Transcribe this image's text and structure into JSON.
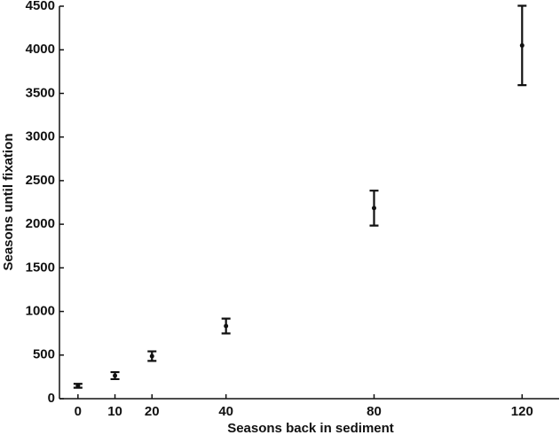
{
  "chart_data": {
    "type": "scatter",
    "x_label": "Seasons back in sediment",
    "y_label": "Seasons until fixation",
    "x": [
      0,
      10,
      20,
      40,
      80,
      120
    ],
    "values": [
      148,
      264,
      488,
      833,
      2185,
      4050
    ],
    "errors": [
      22,
      40,
      55,
      85,
      200,
      455
    ],
    "color": "#111111",
    "xlim": [
      -5,
      130
    ],
    "xticks": [
      0,
      10,
      20,
      40,
      80,
      120
    ],
    "ylim": [
      0,
      4500
    ],
    "yticks": [
      0,
      500,
      1000,
      1500,
      2000,
      2500,
      3000,
      3500,
      4000,
      4500
    ]
  }
}
